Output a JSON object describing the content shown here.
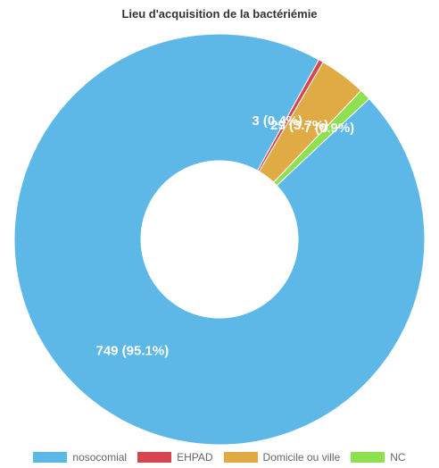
{
  "chart_data": {
    "type": "pie",
    "title": "Lieu d'acquisition de la bactériémie",
    "categories": [
      "nosocomial",
      "EHPAD",
      "Domicile ou ville",
      "NC"
    ],
    "values": [
      749,
      3,
      29,
      7
    ],
    "data_labels": [
      "749 (95.1%)",
      "3 (0.4%)",
      "29 (3.7%)",
      "7 (0.9%)"
    ],
    "colors": [
      "#5DB8E7",
      "#D64550",
      "#E0AA45",
      "#8EE051"
    ],
    "legend_position": "bottom",
    "style": "doughnut"
  }
}
